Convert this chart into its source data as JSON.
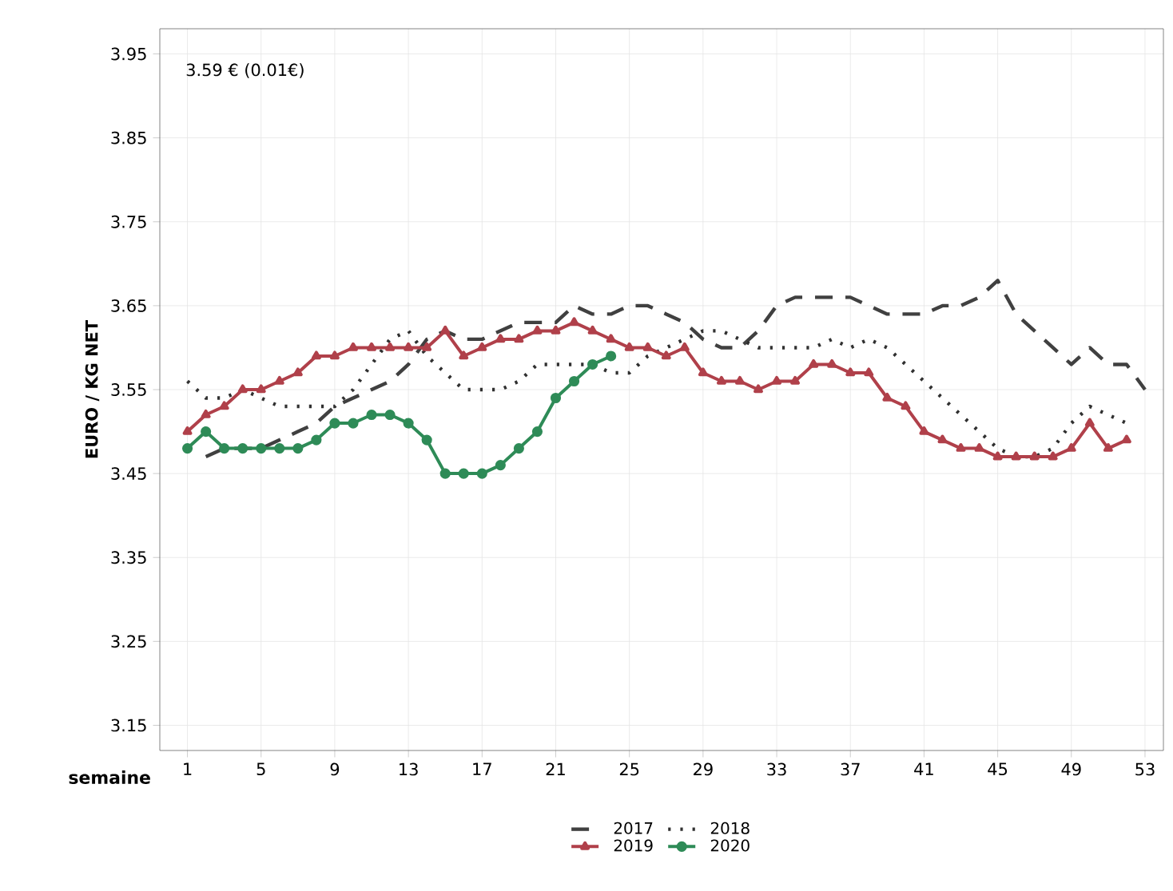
{
  "chart_data": {
    "type": "line",
    "xlabel": "semaine",
    "ylabel": "EURO / KG NET",
    "annotations": [
      "3.59 € (0.01€)"
    ],
    "x": [
      1,
      2,
      3,
      4,
      5,
      6,
      7,
      8,
      9,
      10,
      11,
      12,
      13,
      14,
      15,
      16,
      17,
      18,
      19,
      20,
      21,
      22,
      23,
      24,
      25,
      26,
      27,
      28,
      29,
      30,
      31,
      32,
      33,
      34,
      35,
      36,
      37,
      38,
      39,
      40,
      41,
      42,
      43,
      44,
      45,
      46,
      47,
      48,
      49,
      50,
      51,
      52,
      53
    ],
    "xlim": [
      -0.5,
      54
    ],
    "xticks": [
      1,
      5,
      9,
      13,
      17,
      21,
      25,
      29,
      33,
      37,
      41,
      45,
      49,
      53
    ],
    "ylim": [
      3.12,
      3.98
    ],
    "yticks": [
      3.15,
      3.25,
      3.35,
      3.45,
      3.55,
      3.65,
      3.75,
      3.85,
      3.95
    ],
    "grid": true,
    "legend": "bottom",
    "series": [
      {
        "name": "2017",
        "color": "#404040",
        "line_style": "dashed",
        "marker": "none",
        "values": [
          null,
          3.47,
          3.48,
          3.48,
          3.48,
          3.49,
          3.5,
          3.51,
          3.53,
          3.54,
          3.55,
          3.56,
          3.58,
          3.61,
          3.62,
          3.61,
          3.61,
          3.62,
          3.63,
          3.63,
          3.63,
          3.65,
          3.64,
          3.64,
          3.65,
          3.65,
          3.64,
          3.63,
          3.61,
          3.6,
          3.6,
          3.62,
          3.65,
          3.66,
          3.66,
          3.66,
          3.66,
          3.65,
          3.64,
          3.64,
          3.64,
          3.65,
          3.65,
          3.66,
          3.68,
          3.64,
          3.62,
          3.6,
          3.58,
          3.6,
          3.58,
          3.58,
          3.55
        ]
      },
      {
        "name": "2018",
        "color": "#303030",
        "line_style": "dotted",
        "marker": "none",
        "values": [
          3.56,
          3.54,
          3.54,
          3.55,
          3.54,
          3.53,
          3.53,
          3.53,
          3.53,
          3.55,
          3.58,
          3.61,
          3.62,
          3.59,
          3.57,
          3.55,
          3.55,
          3.55,
          3.56,
          3.58,
          3.58,
          3.58,
          3.58,
          3.57,
          3.57,
          3.59,
          3.6,
          3.61,
          3.62,
          3.62,
          3.61,
          3.6,
          3.6,
          3.6,
          3.6,
          3.61,
          3.6,
          3.61,
          3.6,
          3.58,
          3.56,
          3.54,
          3.52,
          3.5,
          3.48,
          3.47,
          3.47,
          3.48,
          3.51,
          3.53,
          3.52,
          3.51,
          null
        ]
      },
      {
        "name": "2019",
        "color": "#b0404a",
        "line_style": "solid",
        "marker": "triangle",
        "values": [
          3.5,
          3.52,
          3.53,
          3.55,
          3.55,
          3.56,
          3.57,
          3.59,
          3.59,
          3.6,
          3.6,
          3.6,
          3.6,
          3.6,
          3.62,
          3.59,
          3.6,
          3.61,
          3.61,
          3.62,
          3.62,
          3.63,
          3.62,
          3.61,
          3.6,
          3.6,
          3.59,
          3.6,
          3.57,
          3.56,
          3.56,
          3.55,
          3.56,
          3.56,
          3.58,
          3.58,
          3.57,
          3.57,
          3.54,
          3.53,
          3.5,
          3.49,
          3.48,
          3.48,
          3.47,
          3.47,
          3.47,
          3.47,
          3.48,
          3.51,
          3.48,
          3.49,
          null
        ]
      },
      {
        "name": "2020",
        "color": "#2e8b57",
        "line_style": "solid",
        "marker": "circle",
        "values": [
          3.48,
          3.5,
          3.48,
          3.48,
          3.48,
          3.48,
          3.48,
          3.49,
          3.51,
          3.51,
          3.52,
          3.52,
          3.51,
          3.49,
          3.45,
          3.45,
          3.45,
          3.46,
          3.48,
          3.5,
          3.54,
          3.56,
          3.58,
          3.59,
          null,
          null,
          null,
          null,
          null,
          null,
          null,
          null,
          null,
          null,
          null,
          null,
          null,
          null,
          null,
          null,
          null,
          null,
          null,
          null,
          null,
          null,
          null,
          null,
          null,
          null,
          null,
          null,
          null
        ]
      }
    ]
  }
}
